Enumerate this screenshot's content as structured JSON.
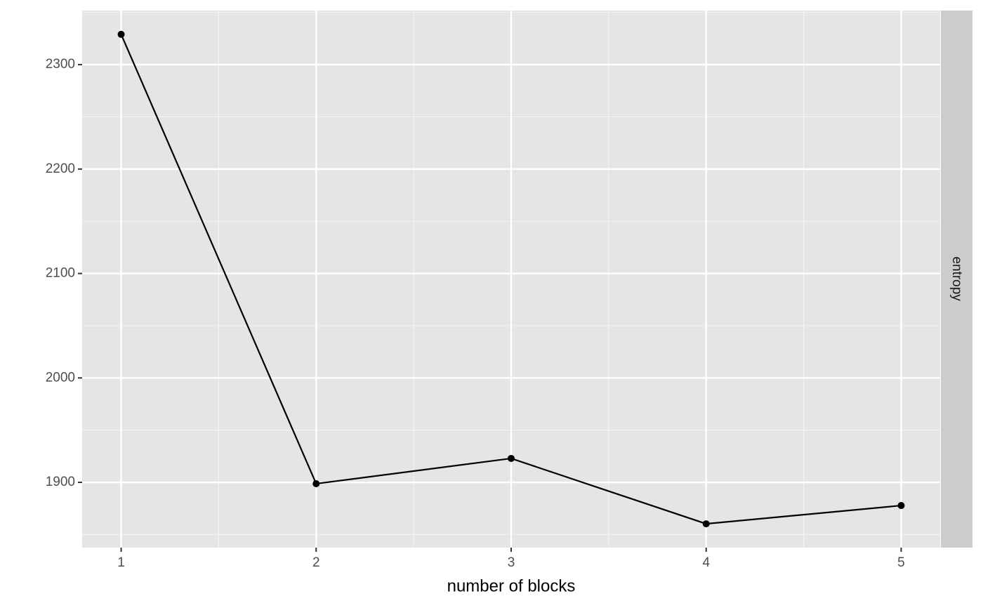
{
  "chart_data": {
    "type": "line",
    "x_label": "number of blocks",
    "facet_label": "entropy",
    "x": [
      1,
      2,
      3,
      4,
      5
    ],
    "series": [
      {
        "color": "#000000",
        "values": [
          2329,
          1898.7,
          1922.9,
          1860.3,
          1877.8
        ]
      }
    ],
    "xlim": [
      0.8,
      5.2
    ],
    "xticks": [
      1,
      2,
      3,
      4,
      5
    ],
    "ylim": [
      1837.5,
      2351.8
    ],
    "yticks": [
      1900,
      2000,
      2100,
      2200,
      2300
    ],
    "grid": true
  }
}
